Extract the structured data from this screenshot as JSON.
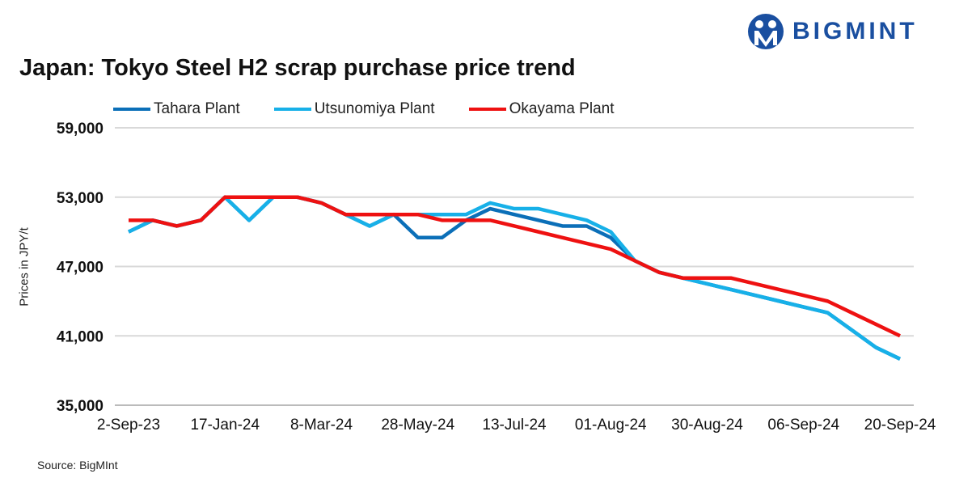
{
  "logo": {
    "text": "BIGMINT"
  },
  "chart_data": {
    "type": "line",
    "title": "Japan: Tokyo Steel H2 scrap purchase price trend",
    "ylabel": "Prices in JPY/t",
    "xlabel": "",
    "ylim": [
      35000,
      59000
    ],
    "yticks": [
      35000,
      41000,
      47000,
      53000,
      59000
    ],
    "ytick_labels": [
      "35,000",
      "41,000",
      "47,000",
      "53,000",
      "59,000"
    ],
    "grid": true,
    "legend_position": "top",
    "n_points": 33,
    "xtick_labels": [
      {
        "index": 0,
        "label": "2-Sep-23"
      },
      {
        "index": 4,
        "label": "17-Jan-24"
      },
      {
        "index": 8,
        "label": "8-Mar-24"
      },
      {
        "index": 12,
        "label": "28-May-24"
      },
      {
        "index": 16,
        "label": "13-Jul-24"
      },
      {
        "index": 20,
        "label": "01-Aug-24"
      },
      {
        "index": 24,
        "label": "30-Aug-24"
      },
      {
        "index": 28,
        "label": "06-Sep-24"
      },
      {
        "index": 32,
        "label": "20-Sep-24"
      }
    ],
    "series": [
      {
        "name": "Tahara Plant",
        "color": "#0b6fb8",
        "values": [
          50000,
          51000,
          50500,
          51000,
          53000,
          51000,
          53000,
          53000,
          52500,
          51500,
          50500,
          51500,
          49500,
          49500,
          51000,
          52000,
          51500,
          51000,
          50500,
          50500,
          49500,
          47500,
          46500,
          46000,
          45500,
          45000,
          44500,
          44000,
          43500,
          43000,
          41500,
          40000,
          39000
        ]
      },
      {
        "name": "Utsunomiya Plant",
        "color": "#17b0e8",
        "values": [
          50000,
          51000,
          50500,
          51000,
          53000,
          51000,
          53000,
          53000,
          52500,
          51500,
          50500,
          51500,
          51500,
          51500,
          51500,
          52500,
          52000,
          52000,
          51500,
          51000,
          50000,
          47500,
          46500,
          46000,
          45500,
          45000,
          44500,
          44000,
          43500,
          43000,
          41500,
          40000,
          39000
        ]
      },
      {
        "name": "Okayama Plant",
        "color": "#ee1111",
        "values": [
          51000,
          51000,
          50500,
          51000,
          53000,
          53000,
          53000,
          53000,
          52500,
          51500,
          51500,
          51500,
          51500,
          51000,
          51000,
          51000,
          50500,
          50000,
          49500,
          49000,
          48500,
          47500,
          46500,
          46000,
          46000,
          46000,
          45500,
          45000,
          44500,
          44000,
          43000,
          42000,
          41000
        ]
      }
    ]
  },
  "source": "Source: BigMInt"
}
